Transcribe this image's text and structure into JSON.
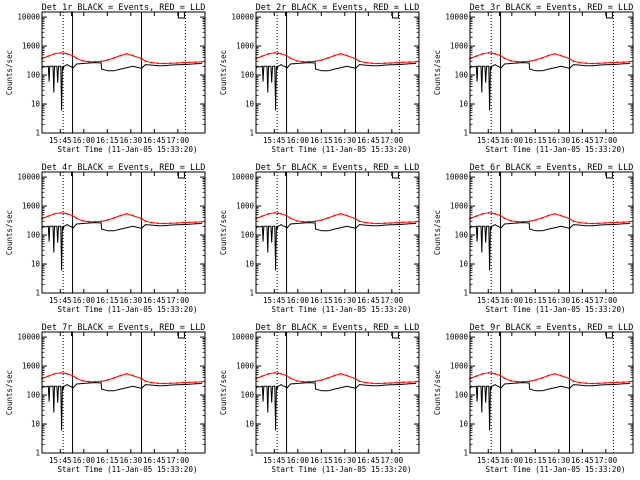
{
  "panels": [
    {
      "id": "1r",
      "title": "Det 1r BLACK = Events, RED = LLD"
    },
    {
      "id": "2r",
      "title": "Det 2r BLACK = Events, RED = LLD"
    },
    {
      "id": "3r",
      "title": "Det 3r BLACK = Events, RED = LLD"
    },
    {
      "id": "4r",
      "title": "Det 4r BLACK = Events, RED = LLD"
    },
    {
      "id": "5r",
      "title": "Det 5r BLACK = Events, RED = LLD"
    },
    {
      "id": "6r",
      "title": "Det 6r BLACK = Events, RED = LLD"
    },
    {
      "id": "7r",
      "title": "Det 7r BLACK = Events, RED = LLD"
    },
    {
      "id": "8r",
      "title": "Det 8r BLACK = Events, RED = LLD"
    },
    {
      "id": "9r",
      "title": "Det 9r BLACK = Events, RED = LLD"
    }
  ],
  "chart_data": {
    "type": "line",
    "xlabel": "Start Time (11-Jan-05 15:33:20)",
    "ylabel": "Counts/sec",
    "yscale": "log",
    "ylim": [
      1,
      15000
    ],
    "xlim_minutes_from_start": [
      0,
      104
    ],
    "x_tick_labels": [
      "15:45",
      "16:00",
      "16:15",
      "16:30",
      "16:45",
      "17:00"
    ],
    "x_tick_minutes_from_start": [
      11.67,
      26.67,
      41.67,
      56.67,
      71.67,
      86.67
    ],
    "y_tick_labels": [
      "1",
      "10",
      "100",
      "1000",
      "10000"
    ],
    "y_tick_values": [
      1,
      10,
      100,
      1000,
      10000
    ],
    "vertical_solid_lines_minutes": [
      19.5,
      63.5
    ],
    "vertical_dotted_lines_minutes": [
      13.5,
      91.5
    ],
    "series": [
      {
        "name": "LLD",
        "color": "#ff0000",
        "x": [
          0,
          4,
          8,
          12,
          14,
          16,
          19.5,
          22,
          26,
          30,
          34,
          38,
          42,
          46,
          50,
          54,
          58,
          63.5,
          66,
          70,
          74,
          78,
          82,
          86,
          90,
          94,
          98,
          102
        ],
        "y": [
          370,
          450,
          540,
          580,
          570,
          540,
          470,
          380,
          310,
          290,
          290,
          300,
          330,
          390,
          470,
          540,
          470,
          370,
          300,
          270,
          255,
          250,
          255,
          260,
          270,
          275,
          280,
          285
        ]
      },
      {
        "name": "Events",
        "color": "#000000",
        "x": [
          0,
          1,
          2,
          4,
          4.5,
          5,
          7,
          7.5,
          8,
          9.5,
          10,
          10.5,
          12,
          12.5,
          13,
          13.5,
          14,
          15,
          16,
          17,
          18,
          19,
          19.5,
          22,
          26,
          30,
          34,
          37.8,
          38,
          42,
          46,
          50,
          54,
          58,
          62,
          63.5,
          66,
          70,
          74,
          78,
          82,
          86,
          90,
          94,
          98,
          102
        ],
        "y": [
          170,
          200,
          190,
          200,
          60,
          200,
          200,
          25,
          200,
          200,
          55,
          200,
          200,
          6,
          200,
          160,
          200,
          210,
          230,
          210,
          200,
          190,
          170,
          240,
          250,
          260,
          270,
          260,
          160,
          140,
          140,
          160,
          180,
          200,
          180,
          170,
          230,
          220,
          210,
          210,
          220,
          225,
          230,
          235,
          245,
          250
        ]
      }
    ]
  }
}
